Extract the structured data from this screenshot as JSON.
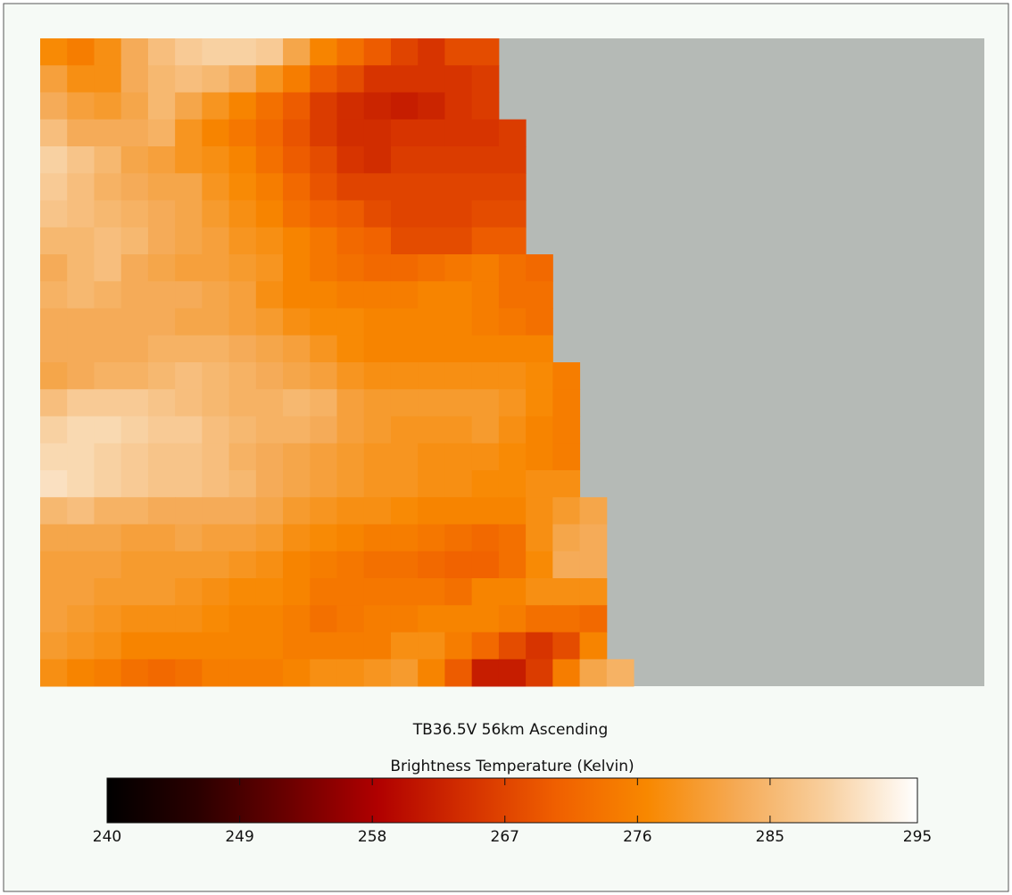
{
  "chart_data": {
    "type": "heatmap",
    "title": "TB36.5V 56km Ascending",
    "colorbar_label": "Brightness Temperature (Kelvin)",
    "zlim": [
      240,
      295
    ],
    "zticks": [
      240,
      249,
      258,
      267,
      276,
      285,
      295
    ],
    "colors": [
      "#000000",
      "#2a0000",
      "#6a0000",
      "#b00000",
      "#d43000",
      "#f06000",
      "#f88800",
      "#f5aa55",
      "#f8d0a0",
      "#ffffff"
    ],
    "missing_color": "#b5bab6",
    "z": [
      [
        277,
        275,
        278,
        283,
        286,
        288,
        289,
        289,
        288,
        282,
        276,
        273,
        270,
        267,
        265,
        268,
        268,
        null,
        null,
        null,
        null,
        null,
        null,
        null,
        null,
        null,
        null,
        null,
        null,
        null,
        null,
        null,
        null,
        null,
        null
      ],
      [
        281,
        278,
        278,
        283,
        285,
        286,
        285,
        283,
        279,
        275,
        270,
        268,
        265,
        265,
        265,
        265,
        266,
        null,
        null,
        null,
        null,
        null,
        null,
        null,
        null,
        null,
        null,
        null,
        null,
        null,
        null,
        null,
        null,
        null,
        null
      ],
      [
        283,
        281,
        280,
        282,
        285,
        282,
        279,
        276,
        273,
        270,
        266,
        264,
        263,
        262,
        263,
        265,
        266,
        null,
        null,
        null,
        null,
        null,
        null,
        null,
        null,
        null,
        null,
        null,
        null,
        null,
        null,
        null,
        null,
        null,
        null
      ],
      [
        286,
        283,
        283,
        283,
        284,
        279,
        276,
        274,
        272,
        269,
        266,
        264,
        264,
        265,
        265,
        265,
        265,
        266,
        null,
        null,
        null,
        null,
        null,
        null,
        null,
        null,
        null,
        null,
        null,
        null,
        null,
        null,
        null,
        null,
        null
      ],
      [
        289,
        287,
        285,
        282,
        281,
        279,
        278,
        276,
        273,
        270,
        268,
        265,
        264,
        266,
        266,
        266,
        266,
        266,
        null,
        null,
        null,
        null,
        null,
        null,
        null,
        null,
        null,
        null,
        null,
        null,
        null,
        null,
        null,
        null,
        null
      ],
      [
        288,
        286,
        284,
        283,
        282,
        282,
        279,
        277,
        275,
        272,
        269,
        267,
        267,
        267,
        267,
        267,
        267,
        267,
        null,
        null,
        null,
        null,
        null,
        null,
        null,
        null,
        null,
        null,
        null,
        null,
        null,
        null,
        null,
        null,
        null
      ],
      [
        287,
        286,
        285,
        284,
        283,
        282,
        280,
        278,
        276,
        273,
        271,
        270,
        268,
        267,
        267,
        267,
        268,
        268,
        null,
        null,
        null,
        null,
        null,
        null,
        null,
        null,
        null,
        null,
        null,
        null,
        null,
        null,
        null,
        null,
        null
      ],
      [
        285,
        285,
        286,
        285,
        283,
        282,
        281,
        279,
        278,
        276,
        274,
        272,
        271,
        268,
        268,
        268,
        270,
        270,
        null,
        null,
        null,
        null,
        null,
        null,
        null,
        null,
        null,
        null,
        null,
        null,
        null,
        null,
        null,
        null,
        null
      ],
      [
        283,
        285,
        286,
        283,
        282,
        281,
        281,
        280,
        279,
        276,
        274,
        273,
        272,
        272,
        273,
        274,
        275,
        273,
        272,
        null,
        null,
        null,
        null,
        null,
        null,
        null,
        null,
        null,
        null,
        null,
        null,
        null,
        null,
        null,
        null
      ],
      [
        284,
        285,
        284,
        283,
        283,
        283,
        282,
        281,
        278,
        276,
        276,
        275,
        275,
        275,
        276,
        276,
        275,
        273,
        273,
        null,
        null,
        null,
        null,
        null,
        null,
        null,
        null,
        null,
        null,
        null,
        null,
        null,
        null,
        null,
        null
      ],
      [
        283,
        283,
        283,
        283,
        283,
        282,
        282,
        281,
        280,
        278,
        277,
        277,
        276,
        276,
        276,
        276,
        275,
        274,
        273,
        null,
        null,
        null,
        null,
        null,
        null,
        null,
        null,
        null,
        null,
        null,
        null,
        null,
        null,
        null,
        null
      ],
      [
        283,
        283,
        283,
        283,
        284,
        284,
        284,
        283,
        282,
        281,
        279,
        277,
        276,
        276,
        276,
        276,
        276,
        276,
        276,
        null,
        null,
        null,
        null,
        null,
        null,
        null,
        null,
        null,
        null,
        null,
        null,
        null,
        null,
        null,
        null
      ],
      [
        282,
        283,
        284,
        284,
        285,
        286,
        285,
        284,
        283,
        282,
        281,
        279,
        278,
        278,
        278,
        278,
        278,
        278,
        277,
        275,
        null,
        null,
        null,
        null,
        null,
        null,
        null,
        null,
        null,
        null,
        null,
        null,
        null,
        null,
        null
      ],
      [
        286,
        288,
        288,
        288,
        287,
        286,
        285,
        284,
        284,
        285,
        284,
        281,
        280,
        280,
        280,
        280,
        280,
        279,
        277,
        275,
        null,
        null,
        null,
        null,
        null,
        null,
        null,
        null,
        null,
        null,
        null,
        null,
        null,
        null,
        null
      ],
      [
        289,
        290,
        290,
        289,
        288,
        288,
        286,
        285,
        284,
        284,
        283,
        281,
        280,
        279,
        279,
        279,
        280,
        278,
        276,
        275,
        null,
        null,
        null,
        null,
        null,
        null,
        null,
        null,
        null,
        null,
        null,
        null,
        null,
        null,
        null
      ],
      [
        290,
        290,
        289,
        288,
        287,
        287,
        286,
        284,
        283,
        282,
        281,
        280,
        279,
        279,
        278,
        278,
        278,
        277,
        276,
        275,
        null,
        null,
        null,
        null,
        null,
        null,
        null,
        null,
        null,
        null,
        null,
        null,
        null,
        null,
        null
      ],
      [
        291,
        290,
        289,
        288,
        287,
        287,
        286,
        285,
        283,
        282,
        281,
        280,
        279,
        279,
        278,
        278,
        277,
        277,
        278,
        278,
        null,
        null,
        null,
        null,
        null,
        null,
        null,
        null,
        null,
        null,
        null,
        null,
        null,
        null,
        null
      ],
      [
        285,
        286,
        284,
        284,
        283,
        283,
        283,
        283,
        282,
        280,
        279,
        278,
        278,
        277,
        276,
        276,
        276,
        276,
        278,
        280,
        282,
        null,
        null,
        null,
        null,
        null,
        null,
        null,
        null,
        null,
        null,
        null,
        null,
        null,
        null
      ],
      [
        282,
        282,
        282,
        281,
        281,
        282,
        281,
        281,
        280,
        278,
        277,
        276,
        275,
        275,
        274,
        273,
        272,
        273,
        278,
        282,
        283,
        null,
        null,
        null,
        null,
        null,
        null,
        null,
        null,
        null,
        null,
        null,
        null,
        null,
        null
      ],
      [
        281,
        281,
        281,
        280,
        280,
        280,
        280,
        279,
        278,
        276,
        275,
        274,
        273,
        273,
        272,
        271,
        271,
        273,
        277,
        283,
        283,
        null,
        null,
        null,
        null,
        null,
        null,
        null,
        null,
        null,
        null,
        null,
        null,
        null,
        null
      ],
      [
        281,
        281,
        280,
        280,
        280,
        279,
        278,
        277,
        277,
        276,
        274,
        274,
        274,
        274,
        274,
        273,
        276,
        276,
        278,
        278,
        278,
        null,
        null,
        null,
        null,
        null,
        null,
        null,
        null,
        null,
        null,
        null,
        null,
        null,
        null
      ],
      [
        281,
        280,
        279,
        278,
        278,
        278,
        277,
        276,
        276,
        275,
        273,
        274,
        275,
        275,
        276,
        276,
        276,
        275,
        273,
        273,
        272,
        null,
        null,
        null,
        null,
        null,
        null,
        null,
        null,
        null,
        null,
        null,
        null,
        null,
        null
      ],
      [
        280,
        279,
        278,
        276,
        276,
        276,
        276,
        276,
        276,
        275,
        275,
        275,
        275,
        278,
        278,
        275,
        272,
        268,
        265,
        268,
        276,
        null,
        null,
        null,
        null,
        null,
        null,
        null,
        null,
        null,
        null,
        null,
        null,
        null,
        null
      ],
      [
        278,
        276,
        275,
        273,
        272,
        273,
        275,
        275,
        275,
        276,
        278,
        278,
        279,
        280,
        276,
        270,
        262,
        262,
        266,
        275,
        282,
        284,
        null,
        null,
        null,
        null,
        null,
        null,
        null,
        null,
        null,
        null,
        null,
        null,
        null
      ]
    ]
  }
}
